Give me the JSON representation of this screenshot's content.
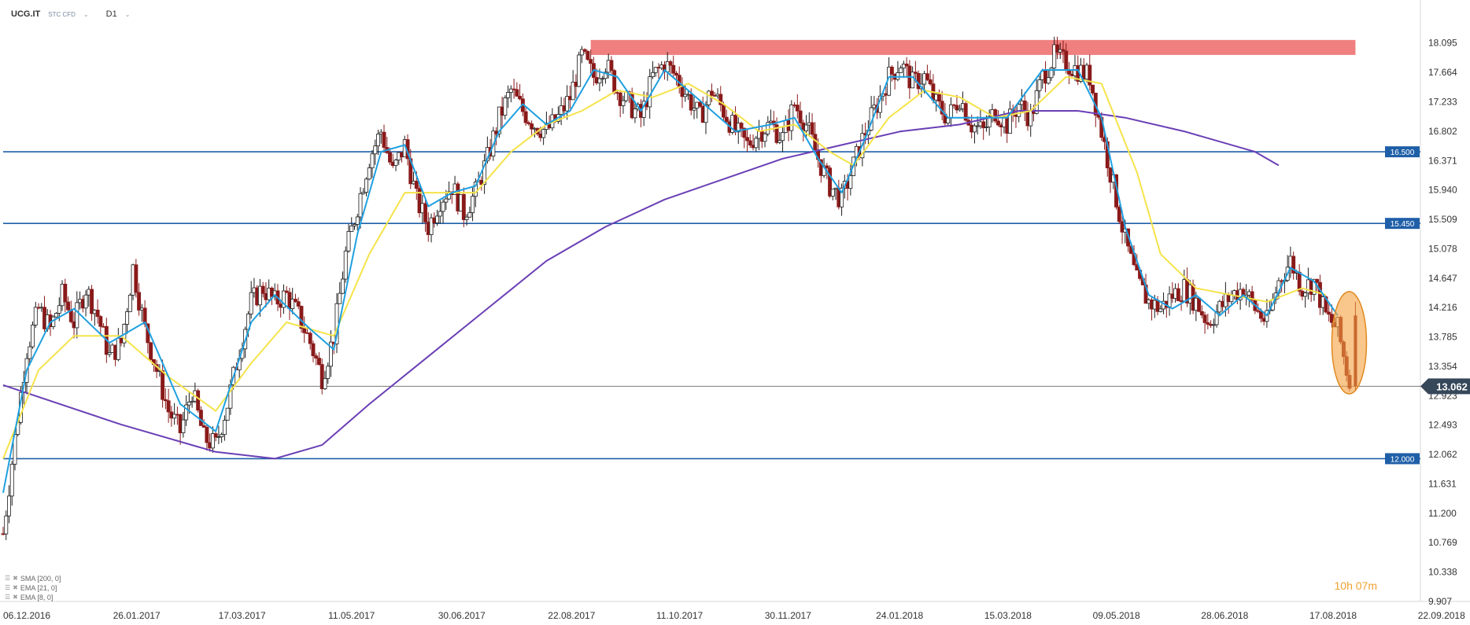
{
  "header": {
    "symbol": "UCG.IT",
    "instrument": "STC CFD",
    "timeframe": "D1"
  },
  "legend": [
    {
      "label": "SMA [200, 0]"
    },
    {
      "label": "EMA [21, 0]"
    },
    {
      "label": "EMA [8, 0]"
    }
  ],
  "timer": "10h 07m",
  "colors": {
    "sma200": "#6a3fb5",
    "ema21": "#f5e34a",
    "ema8": "#1ea0e0",
    "hline": "#1f5fa8",
    "resistance_zone": "#f08080",
    "highlight": "#f5a040"
  },
  "chart_data": {
    "type": "candlestick",
    "title": "",
    "y_ticks": [
      "18.095",
      "17.664",
      "17.233",
      "16.802",
      "16.371",
      "15.940",
      "15.509",
      "15.078",
      "14.647",
      "14.216",
      "13.785",
      "13.354",
      "12.923",
      "12.493",
      "12.062",
      "11.631",
      "11.200",
      "10.769",
      "10.338",
      "9.907"
    ],
    "x_ticks": [
      "06.12.2016",
      "26.01.2017",
      "17.03.2017",
      "11.05.2017",
      "30.06.2017",
      "22.08.2017",
      "11.10.2017",
      "30.11.2017",
      "24.01.2018",
      "15.03.2018",
      "09.05.2018",
      "28.06.2018",
      "17.08.2018",
      "22.09.2018"
    ],
    "ylim": [
      9.907,
      18.38
    ],
    "last_price": "13.062",
    "horizontal_levels": [
      {
        "value": 16.5,
        "label": "16.500"
      },
      {
        "value": 15.45,
        "label": "15.450"
      },
      {
        "value": 12.0,
        "label": "12.000"
      }
    ],
    "resistance_zone": {
      "from": 17.92,
      "to": 18.14
    },
    "price_path": [
      [
        0,
        10.9
      ],
      [
        2,
        12.3
      ],
      [
        4,
        13.6
      ],
      [
        6,
        14.2
      ],
      [
        8,
        13.9
      ],
      [
        10,
        14.4
      ],
      [
        12,
        14.0
      ],
      [
        14,
        14.5
      ],
      [
        16,
        14.1
      ],
      [
        18,
        13.5
      ],
      [
        20,
        13.7
      ],
      [
        22,
        14.8
      ],
      [
        24,
        13.9
      ],
      [
        26,
        13.3
      ],
      [
        28,
        12.7
      ],
      [
        30,
        12.4
      ],
      [
        32,
        13.0
      ],
      [
        34,
        12.3
      ],
      [
        36,
        12.2
      ],
      [
        38,
        12.8
      ],
      [
        40,
        13.6
      ],
      [
        42,
        14.3
      ],
      [
        44,
        14.5
      ],
      [
        46,
        14.3
      ],
      [
        48,
        14.4
      ],
      [
        50,
        14.1
      ],
      [
        52,
        13.7
      ],
      [
        54,
        13.2
      ],
      [
        56,
        13.8
      ],
      [
        58,
        15.0
      ],
      [
        60,
        15.7
      ],
      [
        62,
        16.4
      ],
      [
        64,
        16.8
      ],
      [
        66,
        16.2
      ],
      [
        68,
        16.6
      ],
      [
        70,
        15.8
      ],
      [
        72,
        15.4
      ],
      [
        74,
        15.8
      ],
      [
        76,
        16.0
      ],
      [
        78,
        15.6
      ],
      [
        80,
        15.9
      ],
      [
        82,
        16.4
      ],
      [
        84,
        17.0
      ],
      [
        86,
        17.4
      ],
      [
        88,
        17.1
      ],
      [
        90,
        16.9
      ],
      [
        92,
        16.8
      ],
      [
        94,
        17.0
      ],
      [
        96,
        17.3
      ],
      [
        98,
        17.9
      ],
      [
        100,
        17.6
      ],
      [
        102,
        17.8
      ],
      [
        104,
        17.4
      ],
      [
        106,
        17.2
      ],
      [
        108,
        17.0
      ],
      [
        110,
        17.6
      ],
      [
        112,
        17.8
      ],
      [
        114,
        17.6
      ],
      [
        116,
        17.3
      ],
      [
        118,
        17.0
      ],
      [
        120,
        17.4
      ],
      [
        122,
        17.1
      ],
      [
        124,
        16.8
      ],
      [
        126,
        16.6
      ],
      [
        128,
        16.8
      ],
      [
        130,
        16.9
      ],
      [
        132,
        16.7
      ],
      [
        134,
        17.2
      ],
      [
        136,
        16.9
      ],
      [
        138,
        16.4
      ],
      [
        140,
        16.0
      ],
      [
        142,
        15.8
      ],
      [
        144,
        16.3
      ],
      [
        146,
        16.8
      ],
      [
        148,
        17.2
      ],
      [
        150,
        17.6
      ],
      [
        152,
        17.8
      ],
      [
        154,
        17.5
      ],
      [
        156,
        17.6
      ],
      [
        158,
        17.2
      ],
      [
        160,
        17.0
      ],
      [
        162,
        17.3
      ],
      [
        164,
        16.9
      ],
      [
        166,
        16.8
      ],
      [
        168,
        17.1
      ],
      [
        170,
        16.9
      ],
      [
        172,
        17.2
      ],
      [
        174,
        17.0
      ],
      [
        176,
        17.6
      ],
      [
        178,
        17.9
      ],
      [
        180,
        17.8
      ],
      [
        182,
        17.7
      ],
      [
        184,
        17.6
      ],
      [
        186,
        16.8
      ],
      [
        188,
        16.0
      ],
      [
        190,
        15.2
      ],
      [
        192,
        14.6
      ],
      [
        194,
        14.3
      ],
      [
        196,
        14.2
      ],
      [
        198,
        14.4
      ],
      [
        200,
        14.5
      ],
      [
        202,
        14.3
      ],
      [
        204,
        14.0
      ],
      [
        206,
        14.2
      ],
      [
        208,
        14.4
      ],
      [
        210,
        14.5
      ],
      [
        212,
        14.2
      ],
      [
        214,
        14.0
      ],
      [
        216,
        14.6
      ],
      [
        218,
        14.9
      ],
      [
        220,
        14.5
      ],
      [
        222,
        14.6
      ],
      [
        224,
        14.1
      ],
      [
        226,
        13.9
      ],
      [
        228,
        13.1
      ]
    ],
    "series": [
      {
        "name": "SMA [200, 0]",
        "points": [
          [
            0,
            13.08
          ],
          [
            20,
            12.5
          ],
          [
            36,
            12.1
          ],
          [
            46,
            12.0
          ],
          [
            54,
            12.2
          ],
          [
            62,
            12.8
          ],
          [
            72,
            13.5
          ],
          [
            82,
            14.2
          ],
          [
            92,
            14.9
          ],
          [
            102,
            15.4
          ],
          [
            112,
            15.8
          ],
          [
            122,
            16.1
          ],
          [
            132,
            16.4
          ],
          [
            142,
            16.6
          ],
          [
            152,
            16.8
          ],
          [
            162,
            16.9
          ],
          [
            172,
            17.1
          ],
          [
            182,
            17.1
          ],
          [
            190,
            17.0
          ],
          [
            200,
            16.8
          ],
          [
            212,
            16.5
          ],
          [
            216,
            16.3
          ]
        ]
      },
      {
        "name": "EMA [21, 0]",
        "points": [
          [
            0,
            12.0
          ],
          [
            6,
            13.3
          ],
          [
            12,
            13.8
          ],
          [
            20,
            13.8
          ],
          [
            28,
            13.2
          ],
          [
            36,
            12.7
          ],
          [
            42,
            13.4
          ],
          [
            48,
            14.0
          ],
          [
            56,
            13.8
          ],
          [
            62,
            15.0
          ],
          [
            68,
            15.9
          ],
          [
            74,
            15.9
          ],
          [
            80,
            15.9
          ],
          [
            86,
            16.5
          ],
          [
            92,
            16.9
          ],
          [
            98,
            17.1
          ],
          [
            104,
            17.4
          ],
          [
            110,
            17.3
          ],
          [
            116,
            17.5
          ],
          [
            122,
            17.2
          ],
          [
            128,
            16.8
          ],
          [
            134,
            16.9
          ],
          [
            140,
            16.5
          ],
          [
            144,
            16.3
          ],
          [
            150,
            17.0
          ],
          [
            156,
            17.4
          ],
          [
            162,
            17.3
          ],
          [
            168,
            17.0
          ],
          [
            174,
            17.1
          ],
          [
            180,
            17.6
          ],
          [
            186,
            17.5
          ],
          [
            192,
            16.2
          ],
          [
            196,
            15.0
          ],
          [
            202,
            14.5
          ],
          [
            208,
            14.4
          ],
          [
            214,
            14.3
          ],
          [
            220,
            14.5
          ],
          [
            224,
            14.4
          ]
        ]
      },
      {
        "name": "EMA [8, 0]",
        "points": [
          [
            0,
            11.5
          ],
          [
            4,
            13.3
          ],
          [
            8,
            14.0
          ],
          [
            12,
            14.2
          ],
          [
            18,
            13.7
          ],
          [
            24,
            14.0
          ],
          [
            30,
            12.8
          ],
          [
            36,
            12.4
          ],
          [
            42,
            14.0
          ],
          [
            46,
            14.4
          ],
          [
            52,
            13.9
          ],
          [
            56,
            13.6
          ],
          [
            60,
            15.3
          ],
          [
            64,
            16.5
          ],
          [
            68,
            16.6
          ],
          [
            72,
            15.7
          ],
          [
            76,
            15.9
          ],
          [
            80,
            16.0
          ],
          [
            84,
            16.8
          ],
          [
            88,
            17.2
          ],
          [
            92,
            16.9
          ],
          [
            96,
            17.1
          ],
          [
            100,
            17.7
          ],
          [
            104,
            17.6
          ],
          [
            108,
            17.1
          ],
          [
            112,
            17.7
          ],
          [
            116,
            17.4
          ],
          [
            120,
            17.1
          ],
          [
            124,
            16.8
          ],
          [
            130,
            16.9
          ],
          [
            134,
            17.0
          ],
          [
            138,
            16.4
          ],
          [
            142,
            15.9
          ],
          [
            146,
            16.7
          ],
          [
            150,
            17.6
          ],
          [
            154,
            17.6
          ],
          [
            160,
            17.0
          ],
          [
            164,
            17.0
          ],
          [
            170,
            17.0
          ],
          [
            176,
            17.7
          ],
          [
            182,
            17.7
          ],
          [
            186,
            17.0
          ],
          [
            190,
            15.4
          ],
          [
            194,
            14.4
          ],
          [
            198,
            14.2
          ],
          [
            202,
            14.4
          ],
          [
            206,
            14.1
          ],
          [
            210,
            14.4
          ],
          [
            214,
            14.1
          ],
          [
            218,
            14.8
          ],
          [
            222,
            14.6
          ],
          [
            226,
            14.1
          ]
        ]
      }
    ]
  }
}
